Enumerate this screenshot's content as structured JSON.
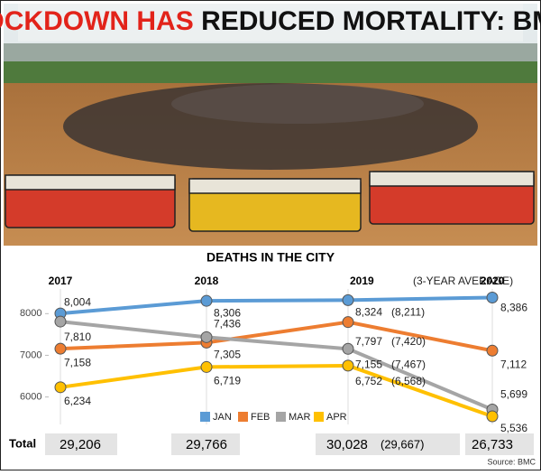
{
  "header": {
    "title_red": "LOCKDOWN HAS",
    "title_black": "REDUCED MORTALITY: BMC"
  },
  "chart_data": {
    "type": "line",
    "title": "DEATHS IN THE CITY",
    "categories": [
      "2017",
      "2018",
      "2019",
      "2020"
    ],
    "category_note": "(3-YEAR AVERAGE)",
    "series": [
      {
        "name": "JAN",
        "color": "#5b9bd5",
        "values": [
          8004,
          8306,
          8324,
          8386
        ],
        "value_labels": [
          "8,004",
          "8,306",
          "8,324",
          "8,386"
        ]
      },
      {
        "name": "FEB",
        "color": "#ed7d31",
        "values": [
          7158,
          7305,
          7797,
          7112
        ],
        "value_labels": [
          "7,158",
          "7,305",
          "7,797",
          "7,112"
        ]
      },
      {
        "name": "MAR",
        "color": "#a5a5a5",
        "values": [
          7810,
          7436,
          7155,
          5699
        ],
        "value_labels": [
          "7,810",
          "7,436",
          "7,155",
          "5,699"
        ]
      },
      {
        "name": "APR",
        "color": "#ffc000",
        "values": [
          6234,
          6719,
          6752,
          5536
        ],
        "value_labels": [
          "6,234",
          "6,719",
          "6,752",
          "5,536"
        ]
      }
    ],
    "three_year_average": {
      "values": [
        8211,
        7420,
        7467,
        6568
      ],
      "value_labels": [
        "(8,211)",
        "(7,420)",
        "(7,467)",
        "(6,568)"
      ]
    },
    "totals": {
      "label": "Total",
      "values": [
        29206,
        29766,
        30028,
        26733
      ],
      "value_labels": [
        "29,206",
        "29,766",
        "30,028",
        "26,733"
      ],
      "average": 29667,
      "average_label": "(29,667)"
    },
    "ylim": [
      5450,
      8700
    ],
    "yticks": [
      6000,
      7000,
      8000
    ],
    "legend": "bottom-right",
    "source": "Source: BMC"
  }
}
